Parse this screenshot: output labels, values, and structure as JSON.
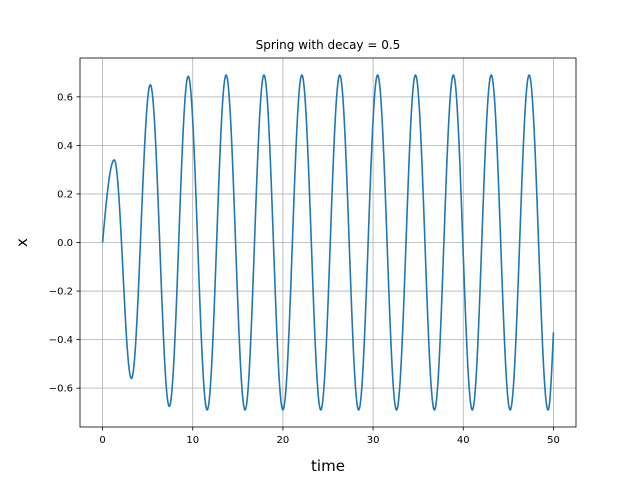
{
  "chart_data": {
    "type": "line",
    "title": "Spring with decay = 0.5",
    "xlabel": "time",
    "ylabel": "x",
    "xlim": [
      -2.5,
      52.5
    ],
    "ylim": [
      -0.76,
      0.76
    ],
    "x_ticks": [
      0,
      10,
      20,
      30,
      40,
      50
    ],
    "x_tick_labels": [
      "0",
      "10",
      "20",
      "30",
      "40",
      "50"
    ],
    "y_ticks": [
      -0.6,
      -0.4,
      -0.2,
      0.0,
      0.2,
      0.4,
      0.6
    ],
    "y_tick_labels": [
      "−0.6",
      "−0.4",
      "−0.2",
      "0.0",
      "0.2",
      "0.4",
      "0.6"
    ],
    "grid": true,
    "line_color": "#1f77b4",
    "series": [
      {
        "x": [
          0,
          1.3,
          3.2,
          5.3,
          7.4,
          9.5,
          11.6,
          13.7,
          15.8,
          17.9,
          20.0,
          22.1,
          24.2,
          26.3,
          28.4,
          30.5,
          32.6,
          34.7,
          36.8,
          38.9,
          41.0,
          43.1,
          45.2,
          47.3,
          49.4,
          50.0
        ],
        "y": [
          0.0,
          0.34,
          -0.56,
          0.65,
          -0.675,
          0.685,
          -0.69,
          0.69,
          -0.69,
          0.69,
          -0.69,
          0.69,
          -0.69,
          0.69,
          -0.69,
          0.69,
          -0.69,
          0.69,
          -0.69,
          0.69,
          -0.69,
          0.69,
          -0.69,
          0.69,
          -0.69,
          -0.37
        ]
      }
    ]
  }
}
